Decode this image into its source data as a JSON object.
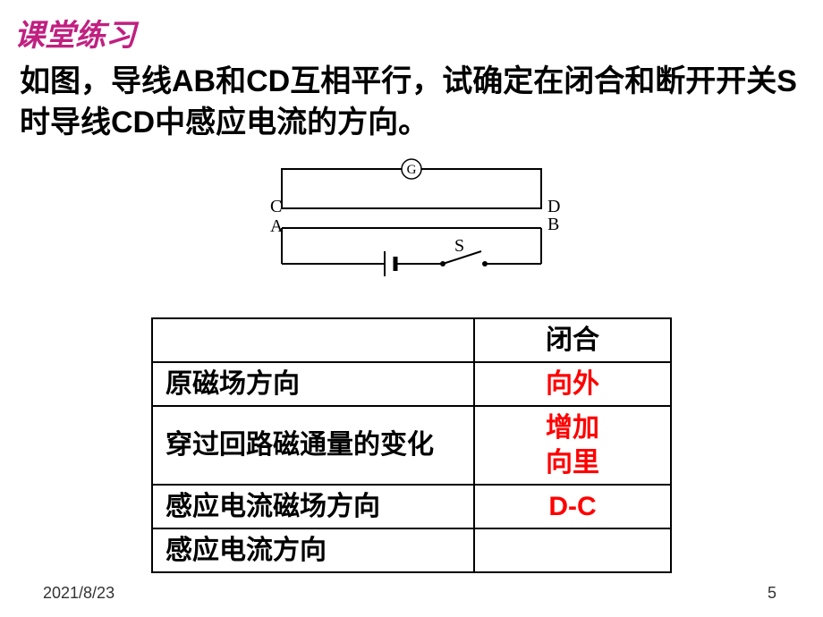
{
  "header": {
    "title": "课堂练习",
    "title_color": "#c02080"
  },
  "question": {
    "text": "如图，导线AB和CD互相平行，试确定在闭合和断开开关S时导线CD中感应电流的方向。",
    "color": "#000000"
  },
  "diagram": {
    "labels": {
      "G": "G",
      "C": "C",
      "D": "D",
      "A": "A",
      "B": "B",
      "S": "S"
    },
    "stroke": "#000000",
    "font_family": "Times New Roman, serif"
  },
  "table": {
    "header_label": "",
    "header_value": "闭合",
    "label_color": "#000000",
    "value_color": "#ff0000",
    "rows": [
      {
        "label": "原磁场方向",
        "value": "向外"
      },
      {
        "label": "穿过回路磁通量的变化",
        "value": "增加\n向里"
      },
      {
        "label": "感应电流磁场方向",
        "value": "D-C"
      },
      {
        "label": "感应电流方向",
        "value": ""
      }
    ]
  },
  "footer": {
    "date": "2021/8/23",
    "page": "5"
  }
}
